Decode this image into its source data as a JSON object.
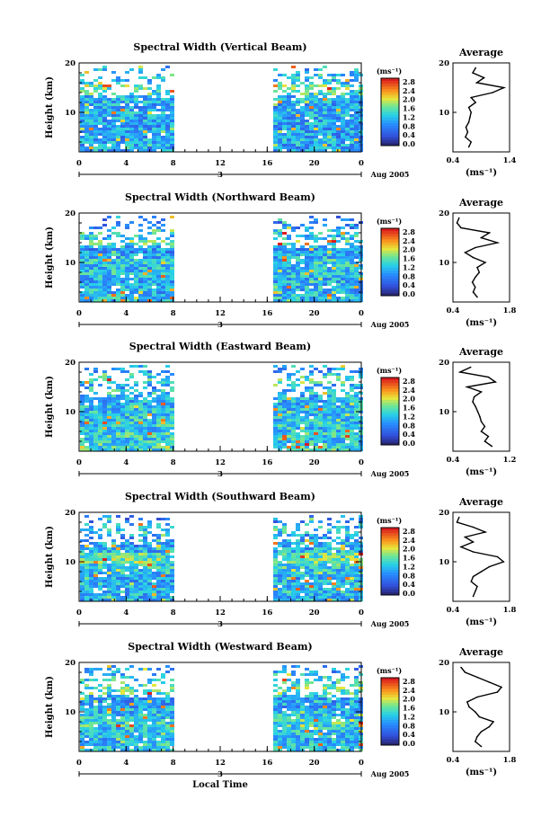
{
  "chart_data": [
    {
      "type": "heatmap",
      "title": "Spectral Width (Vertical Beam)",
      "ylabel": "Height (km)",
      "xlabel": "",
      "x_ticks": [
        "0",
        "4",
        "8",
        "12",
        "16",
        "20",
        "0"
      ],
      "y_ticks": [
        "20",
        "10"
      ],
      "ylim": [
        2,
        20
      ],
      "xlim": [
        0,
        24
      ],
      "data_gap_hours": [
        8,
        16.5
      ],
      "date_label": "3",
      "month_label": "Aug 2005",
      "colorbar": {
        "unit": "(ms⁻¹)",
        "ticks": [
          "2.8",
          "2.4",
          "2.0",
          "1.6",
          "1.2",
          "0.8",
          "0.4",
          "0.0"
        ]
      },
      "average": {
        "title": "Average",
        "xlabel": "(ms⁻¹)",
        "x_ticks": [
          "0.4",
          "1.4"
        ],
        "xlim": [
          0.4,
          1.4
        ],
        "y_ticks": [
          "20",
          "10"
        ],
        "heights": [
          3,
          4,
          5,
          6,
          7,
          8,
          9,
          10,
          11,
          12,
          13,
          14,
          15,
          16,
          17,
          18,
          19
        ],
        "values": [
          0.68,
          0.72,
          0.62,
          0.66,
          0.63,
          0.68,
          0.7,
          0.72,
          0.68,
          0.8,
          0.72,
          1.1,
          1.3,
          0.82,
          0.95,
          0.75,
          0.8
        ]
      }
    },
    {
      "type": "heatmap",
      "title": "Spectral Width (Northward Beam)",
      "ylabel": "Height (km)",
      "xlabel": "",
      "x_ticks": [
        "0",
        "4",
        "8",
        "12",
        "16",
        "20",
        "0"
      ],
      "y_ticks": [
        "20",
        "10"
      ],
      "ylim": [
        2,
        20
      ],
      "xlim": [
        0,
        24
      ],
      "data_gap_hours": [
        8,
        16.5
      ],
      "date_label": "3",
      "month_label": "Aug 2005",
      "colorbar": {
        "unit": "(ms⁻¹)",
        "ticks": [
          "2.8",
          "2.4",
          "2.0",
          "1.6",
          "1.2",
          "0.8",
          "0.4",
          "0.0"
        ]
      },
      "average": {
        "title": "Average",
        "xlabel": "(ms⁻¹)",
        "x_ticks": [
          "0.4",
          "1.8"
        ],
        "xlim": [
          0.4,
          1.8
        ],
        "y_ticks": [
          "20",
          "10"
        ],
        "heights": [
          3,
          4,
          5,
          6,
          7,
          8,
          9,
          10,
          11,
          12,
          13,
          14,
          15,
          16,
          17,
          18,
          19
        ],
        "values": [
          1.0,
          0.9,
          0.95,
          0.88,
          0.95,
          1.05,
          1.0,
          1.2,
          0.9,
          0.7,
          0.95,
          1.5,
          1.1,
          1.3,
          0.6,
          0.5,
          0.55
        ]
      }
    },
    {
      "type": "heatmap",
      "title": "Spectral Width (Eastward Beam)",
      "ylabel": "Height (km)",
      "xlabel": "",
      "x_ticks": [
        "0",
        "4",
        "8",
        "12",
        "16",
        "20",
        "0"
      ],
      "y_ticks": [
        "20",
        "10"
      ],
      "ylim": [
        2,
        20
      ],
      "xlim": [
        0,
        24
      ],
      "data_gap_hours": [
        8,
        16.5
      ],
      "date_label": "3",
      "month_label": "Aug 2005",
      "colorbar": {
        "unit": "(ms⁻¹)",
        "ticks": [
          "2.8",
          "2.4",
          "2.0",
          "1.6",
          "1.2",
          "0.8",
          "0.4",
          "0.0"
        ]
      },
      "average": {
        "title": "Average",
        "xlabel": "(ms⁻¹)",
        "x_ticks": [
          "0.4",
          "1.2"
        ],
        "xlim": [
          0.4,
          1.2
        ],
        "y_ticks": [
          "20",
          "10"
        ],
        "heights": [
          3,
          4,
          5,
          6,
          7,
          8,
          9,
          10,
          11,
          12,
          13,
          14,
          15,
          16,
          17,
          18,
          19
        ],
        "values": [
          0.95,
          0.85,
          0.9,
          0.8,
          0.85,
          0.8,
          0.78,
          0.75,
          0.72,
          0.68,
          0.7,
          0.8,
          0.6,
          1.0,
          0.9,
          0.5,
          0.65
        ]
      }
    },
    {
      "type": "heatmap",
      "title": "Spectral Width (Southward Beam)",
      "ylabel": "Height (km)",
      "xlabel": "",
      "x_ticks": [
        "0",
        "4",
        "8",
        "12",
        "16",
        "20",
        "0"
      ],
      "y_ticks": [
        "20",
        "10"
      ],
      "ylim": [
        2,
        20
      ],
      "xlim": [
        0,
        24
      ],
      "data_gap_hours": [
        8,
        16.5
      ],
      "date_label": "3",
      "month_label": "Aug 2005",
      "colorbar": {
        "unit": "(ms⁻¹)",
        "ticks": [
          "2.8",
          "2.4",
          "2.0",
          "1.6",
          "1.2",
          "0.8",
          "0.4",
          "0.0"
        ]
      },
      "average": {
        "title": "Average",
        "xlabel": "(ms⁻¹)",
        "x_ticks": [
          "0.4",
          "1.8"
        ],
        "xlim": [
          0.4,
          1.8
        ],
        "y_ticks": [
          "20",
          "10"
        ],
        "heights": [
          3,
          4,
          5,
          6,
          7,
          8,
          9,
          10,
          11,
          12,
          13,
          14,
          15,
          16,
          17,
          18,
          19
        ],
        "values": [
          0.9,
          0.95,
          1.0,
          0.85,
          0.9,
          1.1,
          1.3,
          1.65,
          1.5,
          0.9,
          0.6,
          0.9,
          0.7,
          1.2,
          0.9,
          0.5,
          0.55
        ]
      }
    },
    {
      "type": "heatmap",
      "title": "Spectral Width (Westward Beam)",
      "ylabel": "Height (km)",
      "xlabel": "Local Time",
      "x_ticks": [
        "0",
        "4",
        "8",
        "12",
        "16",
        "20",
        "0"
      ],
      "y_ticks": [
        "20",
        "10"
      ],
      "ylim": [
        2,
        20
      ],
      "xlim": [
        0,
        24
      ],
      "data_gap_hours": [
        8,
        16.5
      ],
      "date_label": "3",
      "month_label": "Aug 2005",
      "colorbar": {
        "unit": "(ms⁻¹)",
        "ticks": [
          "2.8",
          "2.4",
          "2.0",
          "1.6",
          "1.2",
          "0.8",
          "0.4",
          "0.0"
        ]
      },
      "average": {
        "title": "Average",
        "xlabel": "(ms⁻¹)",
        "x_ticks": [
          "0.4",
          "1.8"
        ],
        "xlim": [
          0.4,
          1.8
        ],
        "y_ticks": [
          "20",
          "10"
        ],
        "heights": [
          3,
          4,
          5,
          6,
          7,
          8,
          9,
          10,
          11,
          12,
          13,
          14,
          15,
          16,
          17,
          18,
          19
        ],
        "values": [
          1.1,
          0.95,
          1.0,
          1.1,
          1.3,
          1.4,
          1.05,
          0.95,
          0.8,
          0.75,
          1.0,
          1.5,
          1.6,
          1.3,
          1.0,
          0.7,
          0.6
        ]
      }
    }
  ]
}
